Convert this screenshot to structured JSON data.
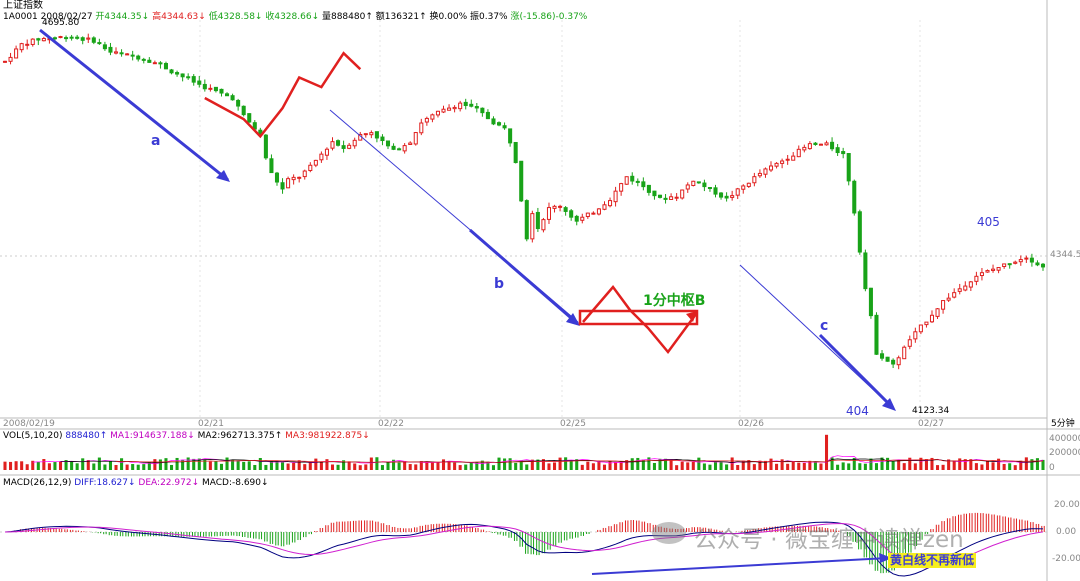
{
  "header": {
    "index_name": "上证指数",
    "code": "1A0001",
    "date": "2008/02/27",
    "open": "开4344.35",
    "high": "高4344.63",
    "low": "低4328.58",
    "close": "收4328.66",
    "volume": "量888480",
    "amount": "额136321",
    "turnover": "换0.00%",
    "amplitude": "振0.37%",
    "change": "涨(-15.86)-0.37%",
    "arrows": [
      "↓",
      "↓",
      "↓",
      "↓",
      "↑",
      "↑"
    ]
  },
  "vol_header": {
    "label": "VOL(5,10,20)",
    "value": "888480",
    "ma1": "MA1:914637.188",
    "ma2": "MA2:962713.375",
    "ma3": "MA3:981922.875",
    "arrows": [
      "↑",
      "↓",
      "↑",
      "↓"
    ]
  },
  "macd_header": {
    "label": "MACD(26,12,9)",
    "diff": "DIFF:18.627",
    "dea": "DEA:22.972",
    "macd": "MACD:-8.690",
    "arrows": [
      "↓",
      "↓",
      "↓"
    ]
  },
  "date_axis": [
    "2008/02/19",
    "02/21",
    "02/22",
    "02/25",
    "02/26",
    "02/27"
  ],
  "period_label": "5分钟",
  "price_axis": {
    "current": "4344.5"
  },
  "vol_axis": [
    "400000",
    "200000",
    "0"
  ],
  "macd_axis": [
    "20.00",
    "0.00",
    "-20.00"
  ],
  "annotations": {
    "high_price": "4695.80",
    "low_price": "4123.34",
    "seg_a": "a",
    "seg_b": "b",
    "seg_c": "c",
    "zhongshu": "1分中枢B",
    "n404": "404",
    "n405": "405",
    "divergence": "黄白线不再新低"
  },
  "watermark": "公众号 · 薇宝缠中读禅zen",
  "colors": {
    "up": "#e0201f",
    "down": "#19a319",
    "blue_arrow": "#3b3bd4",
    "red_line": "#e0201f",
    "diff": "#000080",
    "dea": "#d020d0"
  },
  "chart_data": {
    "type": "candlestick",
    "path_x": [
      0,
      3,
      6,
      11,
      16,
      19,
      25,
      28,
      30,
      36,
      41,
      43,
      46,
      47,
      48,
      50,
      51,
      53,
      55,
      57,
      59,
      61,
      64,
      66,
      68,
      70,
      73,
      75,
      78,
      82,
      85,
      88,
      90,
      91,
      92,
      93,
      94,
      95,
      96,
      97,
      98,
      100,
      103,
      106,
      109,
      112,
      115,
      118,
      121,
      124,
      127,
      130,
      133,
      136,
      139,
      142,
      145,
      148,
      151,
      152,
      153,
      154,
      155,
      156,
      157,
      160,
      163,
      166,
      169,
      172,
      175,
      178,
      181,
      184,
      187
    ],
    "path_p": [
      4655,
      4682,
      4690,
      4694,
      4688,
      4670,
      4660,
      4650,
      4640,
      4615,
      4598,
      4570,
      4540,
      4505,
      4480,
      4455,
      4470,
      4475,
      4490,
      4510,
      4530,
      4520,
      4540,
      4545,
      4530,
      4515,
      4530,
      4560,
      4575,
      4590,
      4580,
      4560,
      4550,
      4530,
      4500,
      4440,
      4380,
      4420,
      4395,
      4410,
      4425,
      4430,
      4405,
      4420,
      4440,
      4475,
      4460,
      4440,
      4445,
      4470,
      4455,
      4440,
      4460,
      4480,
      4495,
      4510,
      4525,
      4525,
      4510,
      4470,
      4420,
      4360,
      4300,
      4255,
      4200,
      4180,
      4220,
      4250,
      4280,
      4300,
      4320,
      4330,
      4340,
      4350,
      4333
    ],
    "x_range": [
      0,
      187
    ],
    "y_range": [
      4110,
      4720
    ],
    "chan_points": [
      {
        "x": 36,
        "p": 4598
      },
      {
        "x": 43,
        "p": 4565
      },
      {
        "x": 46,
        "p": 4538
      },
      {
        "x": 50,
        "p": 4582
      },
      {
        "x": 53,
        "p": 4630
      },
      {
        "x": 57,
        "p": 4615
      },
      {
        "x": 61,
        "p": 4668
      },
      {
        "x": 64,
        "p": 4643
      }
    ]
  }
}
